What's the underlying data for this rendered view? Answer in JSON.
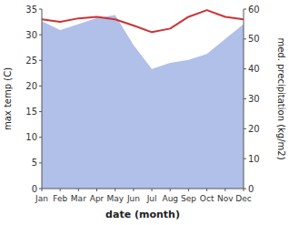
{
  "chart_data": {
    "type": "line",
    "xlabel": "date (month)",
    "ylabel": "max temp (C)",
    "y2label": "med. precipitation (kg/m2)",
    "categories": [
      "Jan",
      "Feb",
      "Mar",
      "Apr",
      "May",
      "Jun",
      "Jul",
      "Aug",
      "Sep",
      "Oct",
      "Nov",
      "Dec"
    ],
    "series": [
      {
        "type": "area",
        "axis": "y2",
        "color": "#b0c0e8",
        "values": [
          56,
          53,
          55,
          57,
          58,
          48,
          40,
          42,
          43,
          45,
          50,
          55
        ]
      },
      {
        "type": "line",
        "color": "#cc3333",
        "values": [
          33.0,
          32.5,
          33.2,
          33.5,
          33.0,
          31.8,
          30.5,
          31.2,
          33.5,
          34.8,
          33.5,
          33.0
        ]
      }
    ],
    "ylim": [
      0,
      35
    ],
    "yticks": [
      0,
      5,
      10,
      15,
      20,
      25,
      30,
      35
    ],
    "y2lim": [
      0,
      60
    ],
    "y2ticks": [
      0,
      10,
      20,
      30,
      40,
      50,
      60
    ],
    "grid": false
  }
}
